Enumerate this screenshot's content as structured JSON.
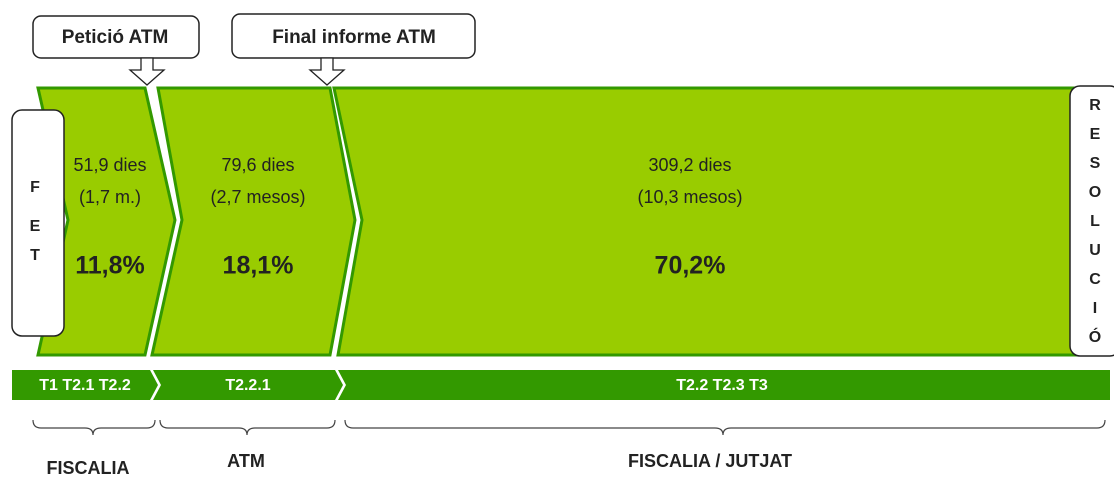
{
  "callouts": [
    "Petició ATM",
    "Final informe ATM"
  ],
  "start": [
    "F",
    "E",
    "T"
  ],
  "end": [
    "R",
    "E",
    "S",
    "O",
    "L",
    "U",
    "C",
    "I",
    "Ó"
  ],
  "phases": [
    {
      "days": "51,9 dies",
      "period": "(1,7 m.)",
      "share": "11,8%"
    },
    {
      "days": "79,6 dies",
      "period": "(2,7 mesos)",
      "share": "18,1%"
    },
    {
      "days": "309,2 dies",
      "period": "(10,3 mesos)",
      "share": "70,2%"
    }
  ],
  "steps": [
    "T1 T2.1 T2.2",
    "T2.2.1",
    "T2.2 T2.3 T3"
  ],
  "groups": [
    "FISCALIA",
    "ATM",
    "FISCALIA / JUTJAT"
  ]
}
